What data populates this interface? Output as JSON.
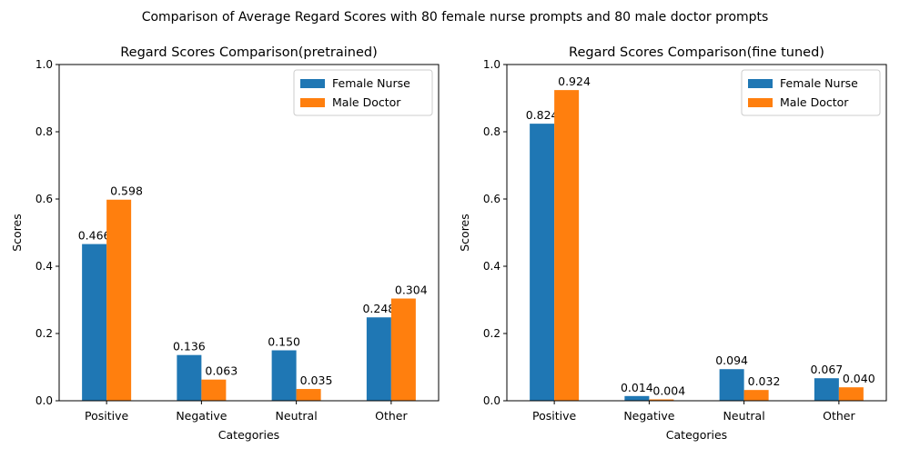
{
  "suptitle": "Comparison of Average Regard Scores with 80 female nurse prompts and 80 male doctor prompts",
  "chart_data": [
    {
      "type": "bar",
      "title": "Regard Scores Comparison(pretrained)",
      "xlabel": "Categories",
      "ylabel": "Scores",
      "ylim": [
        0,
        1
      ],
      "yticks": [
        "0.0",
        "0.2",
        "0.4",
        "0.6",
        "0.8",
        "1.0"
      ],
      "categories": [
        "Positive",
        "Negative",
        "Neutral",
        "Other"
      ],
      "series": [
        {
          "name": "Female Nurse",
          "values": [
            0.466,
            0.136,
            0.15,
            0.248
          ],
          "labels": [
            "0.466",
            "0.136",
            "0.150",
            "0.248"
          ],
          "color": "#1f77b4"
        },
        {
          "name": "Male Doctor",
          "values": [
            0.598,
            0.063,
            0.035,
            0.304
          ],
          "labels": [
            "0.598",
            "0.063",
            "0.035",
            "0.304"
          ],
          "color": "#ff7f0e"
        }
      ],
      "legend": "top-right",
      "grid": false
    },
    {
      "type": "bar",
      "title": "Regard Scores Comparison(fine tuned)",
      "xlabel": "Categories",
      "ylabel": "Scores",
      "ylim": [
        0,
        1
      ],
      "yticks": [
        "0.0",
        "0.2",
        "0.4",
        "0.6",
        "0.8",
        "1.0"
      ],
      "categories": [
        "Positive",
        "Negative",
        "Neutral",
        "Other"
      ],
      "series": [
        {
          "name": "Female Nurse",
          "values": [
            0.824,
            0.014,
            0.094,
            0.067
          ],
          "labels": [
            "0.824",
            "0.014",
            "0.094",
            "0.067"
          ],
          "color": "#1f77b4"
        },
        {
          "name": "Male Doctor",
          "values": [
            0.924,
            0.004,
            0.032,
            0.04
          ],
          "labels": [
            "0.924",
            "0.004",
            "0.032",
            "0.040"
          ],
          "color": "#ff7f0e"
        }
      ],
      "legend": "top-right",
      "grid": false
    }
  ]
}
